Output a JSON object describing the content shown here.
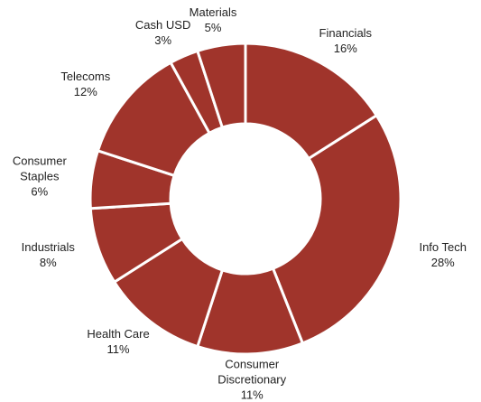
{
  "chart_data": {
    "type": "donut",
    "categories": [
      "Financials",
      "Info Tech",
      "Consumer Discretionary",
      "Health Care",
      "Industrials",
      "Consumer Staples",
      "Telecoms",
      "Cash USD",
      "Materials"
    ],
    "values": [
      16,
      28,
      11,
      11,
      8,
      6,
      12,
      3,
      5
    ],
    "value_labels": [
      "16%",
      "28%",
      "11%",
      "11%",
      "8%",
      "6%",
      "12%",
      "3%",
      "5%"
    ],
    "color": "#a0342b"
  }
}
